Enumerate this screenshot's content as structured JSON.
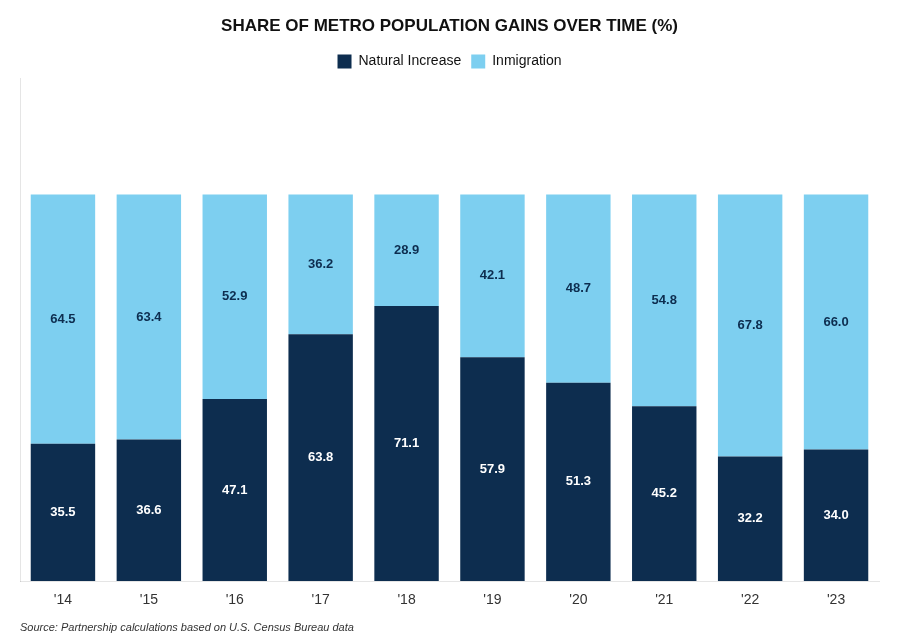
{
  "chart_data": {
    "type": "bar",
    "title": "SHARE OF METRO POPULATION GAINS OVER TIME (%)",
    "categories": [
      "'14",
      "'15",
      "'16",
      "'17",
      "'18",
      "'19",
      "'20",
      "'21",
      "'22",
      "'23"
    ],
    "series": [
      {
        "name": "Natural Increase",
        "color": "#0d2d4f",
        "values": [
          35.5,
          36.6,
          47.1,
          63.8,
          71.1,
          57.9,
          51.3,
          45.2,
          32.2,
          34.0
        ],
        "value_labels": [
          "35.5",
          "36.6",
          "47.1",
          "63.8",
          "71.1",
          "57.9",
          "51.3",
          "45.2",
          "32.2",
          "34.0"
        ]
      },
      {
        "name": "Inmigration",
        "color": "#7dcff0",
        "values": [
          64.5,
          63.4,
          52.9,
          36.2,
          28.9,
          42.1,
          48.7,
          54.8,
          67.8,
          66.0
        ],
        "value_labels": [
          "64.5",
          "63.4",
          "52.9",
          "36.2",
          "28.9",
          "42.1",
          "48.7",
          "54.8",
          "67.8",
          "66.0"
        ]
      }
    ],
    "stacked": true,
    "data_labels": true,
    "ylim": [
      0,
      130
    ],
    "tick_labels": "x",
    "grid": false,
    "legend": "top",
    "annotations": [
      "Source: Partnership calculations based on U.S. Census Bureau data"
    ]
  }
}
